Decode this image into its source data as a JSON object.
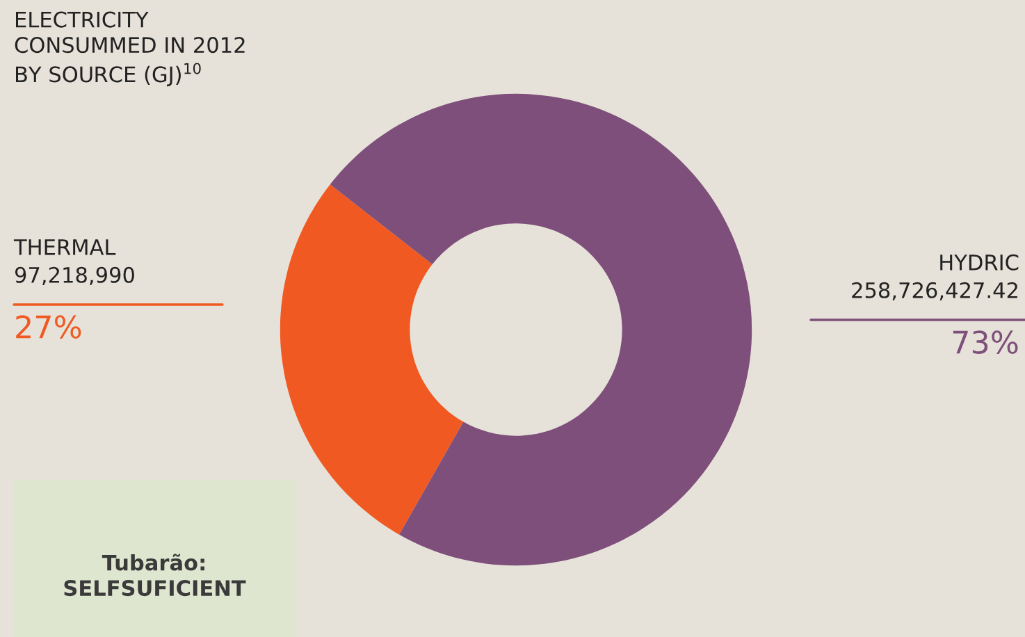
{
  "chart_data": {
    "type": "donut",
    "title": "ELECTRICITY\nCONSUMMED IN 2012\nBY SOURCE (GJ)$^{10}$",
    "categories": [
      "THERMAL",
      "HYDRIC"
    ],
    "values": [
      97218990,
      258726427.42
    ],
    "value_labels": [
      "97,218,990",
      "258,726,427.42"
    ],
    "colors": [
      "#f05a22",
      "#7d4f7a"
    ],
    "annotations": [
      "27%",
      "73%",
      "Tubarão:\nSELFSUFICIENT"
    ]
  }
}
